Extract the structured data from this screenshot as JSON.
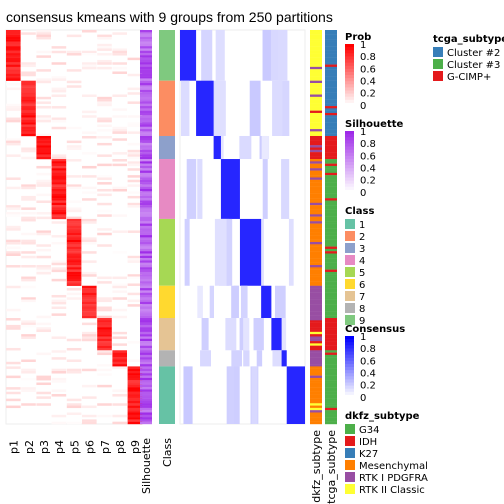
{
  "chart_data": {
    "type": "heatmap",
    "title": "consensus kmeans with 9 groups from 250 partitions",
    "prob_columns": [
      "p1",
      "p2",
      "p3",
      "p4",
      "p5",
      "p6",
      "p7",
      "p8",
      "p9"
    ],
    "annotation_columns": [
      "Silhouette",
      "Class",
      "dkfz_subtype",
      "tcga_subtype"
    ],
    "cluster_groups": [
      {
        "class": "9",
        "prob_col": "p1",
        "tcga": "Cluster #2",
        "dkfz": "RTK II Classic",
        "n": 22
      },
      {
        "class": "2",
        "prob_col": "p2",
        "tcga": "Cluster #2",
        "dkfz": "RTK II Classic",
        "n": 24
      },
      {
        "class": "3",
        "prob_col": "p3",
        "tcga": "G-CIMP+",
        "dkfz": "IDH",
        "n": 10
      },
      {
        "class": "4",
        "prob_col": "p4",
        "tcga": "Cluster #3",
        "dkfz": "Mesenchymal",
        "n": 26
      },
      {
        "class": "5",
        "prob_col": "p5",
        "tcga": "Cluster #3",
        "dkfz": "Mesenchymal",
        "n": 29
      },
      {
        "class": "6",
        "prob_col": "p6",
        "tcga": "Cluster #3",
        "dkfz": "RTK I PDGFRA",
        "n": 14
      },
      {
        "class": "7",
        "prob_col": "p7",
        "tcga": "G-CIMP+",
        "dkfz": "IDH",
        "n": 14
      },
      {
        "class": "8",
        "prob_col": "p8",
        "tcga": "Cluster #3",
        "dkfz": "RTK I PDGFRA",
        "n": 7
      },
      {
        "class": "1",
        "prob_col": "p9",
        "tcga": "Cluster #3",
        "dkfz": "Mesenchymal",
        "n": 25
      }
    ],
    "legends": {
      "tcga_subtype": {
        "title": "tcga_subtype",
        "items": [
          {
            "label": "Cluster #2",
            "color": "#377EB8"
          },
          {
            "label": "Cluster #3",
            "color": "#4DAF4A"
          },
          {
            "label": "G-CIMP+",
            "color": "#E41A1C"
          }
        ]
      },
      "prob": {
        "title": "Prob",
        "ticks": [
          "1",
          "0.8",
          "0.6",
          "0.4",
          "0.2",
          "0"
        ],
        "color_high": "#FF0000",
        "color_low": "#FFFFFF"
      },
      "silhouette": {
        "title": "Silhouette",
        "ticks": [
          "1",
          "0.8",
          "0.6",
          "0.4",
          "0.2",
          "0"
        ],
        "color_high": "#9E2AE8",
        "color_low": "#FFFFFF"
      },
      "class": {
        "title": "Class",
        "items": [
          {
            "label": "1",
            "color": "#66C2A5"
          },
          {
            "label": "2",
            "color": "#FC8D62"
          },
          {
            "label": "3",
            "color": "#8DA0CB"
          },
          {
            "label": "4",
            "color": "#E78AC3"
          },
          {
            "label": "5",
            "color": "#A6D854"
          },
          {
            "label": "6",
            "color": "#FFD92F"
          },
          {
            "label": "7",
            "color": "#E5C494"
          },
          {
            "label": "8",
            "color": "#B3B3B3"
          },
          {
            "label": "9",
            "color": "#7FC97F"
          }
        ]
      },
      "consensus": {
        "title": "Consensus",
        "ticks": [
          "1",
          "0.8",
          "0.6",
          "0.4",
          "0.2",
          "0"
        ],
        "color_high": "#0000FF",
        "color_low": "#FFFFFF"
      },
      "dkfz_subtype": {
        "title": "dkfz_subtype",
        "items": [
          {
            "label": "G34",
            "color": "#4DAF4A"
          },
          {
            "label": "IDH",
            "color": "#E41A1C"
          },
          {
            "label": "K27",
            "color": "#377EB8"
          },
          {
            "label": "Mesenchymal",
            "color": "#FF7F00"
          },
          {
            "label": "RTK I PDGFRA",
            "color": "#984EA3"
          },
          {
            "label": "RTK II Classic",
            "color": "#FFFF33"
          }
        ]
      }
    }
  }
}
